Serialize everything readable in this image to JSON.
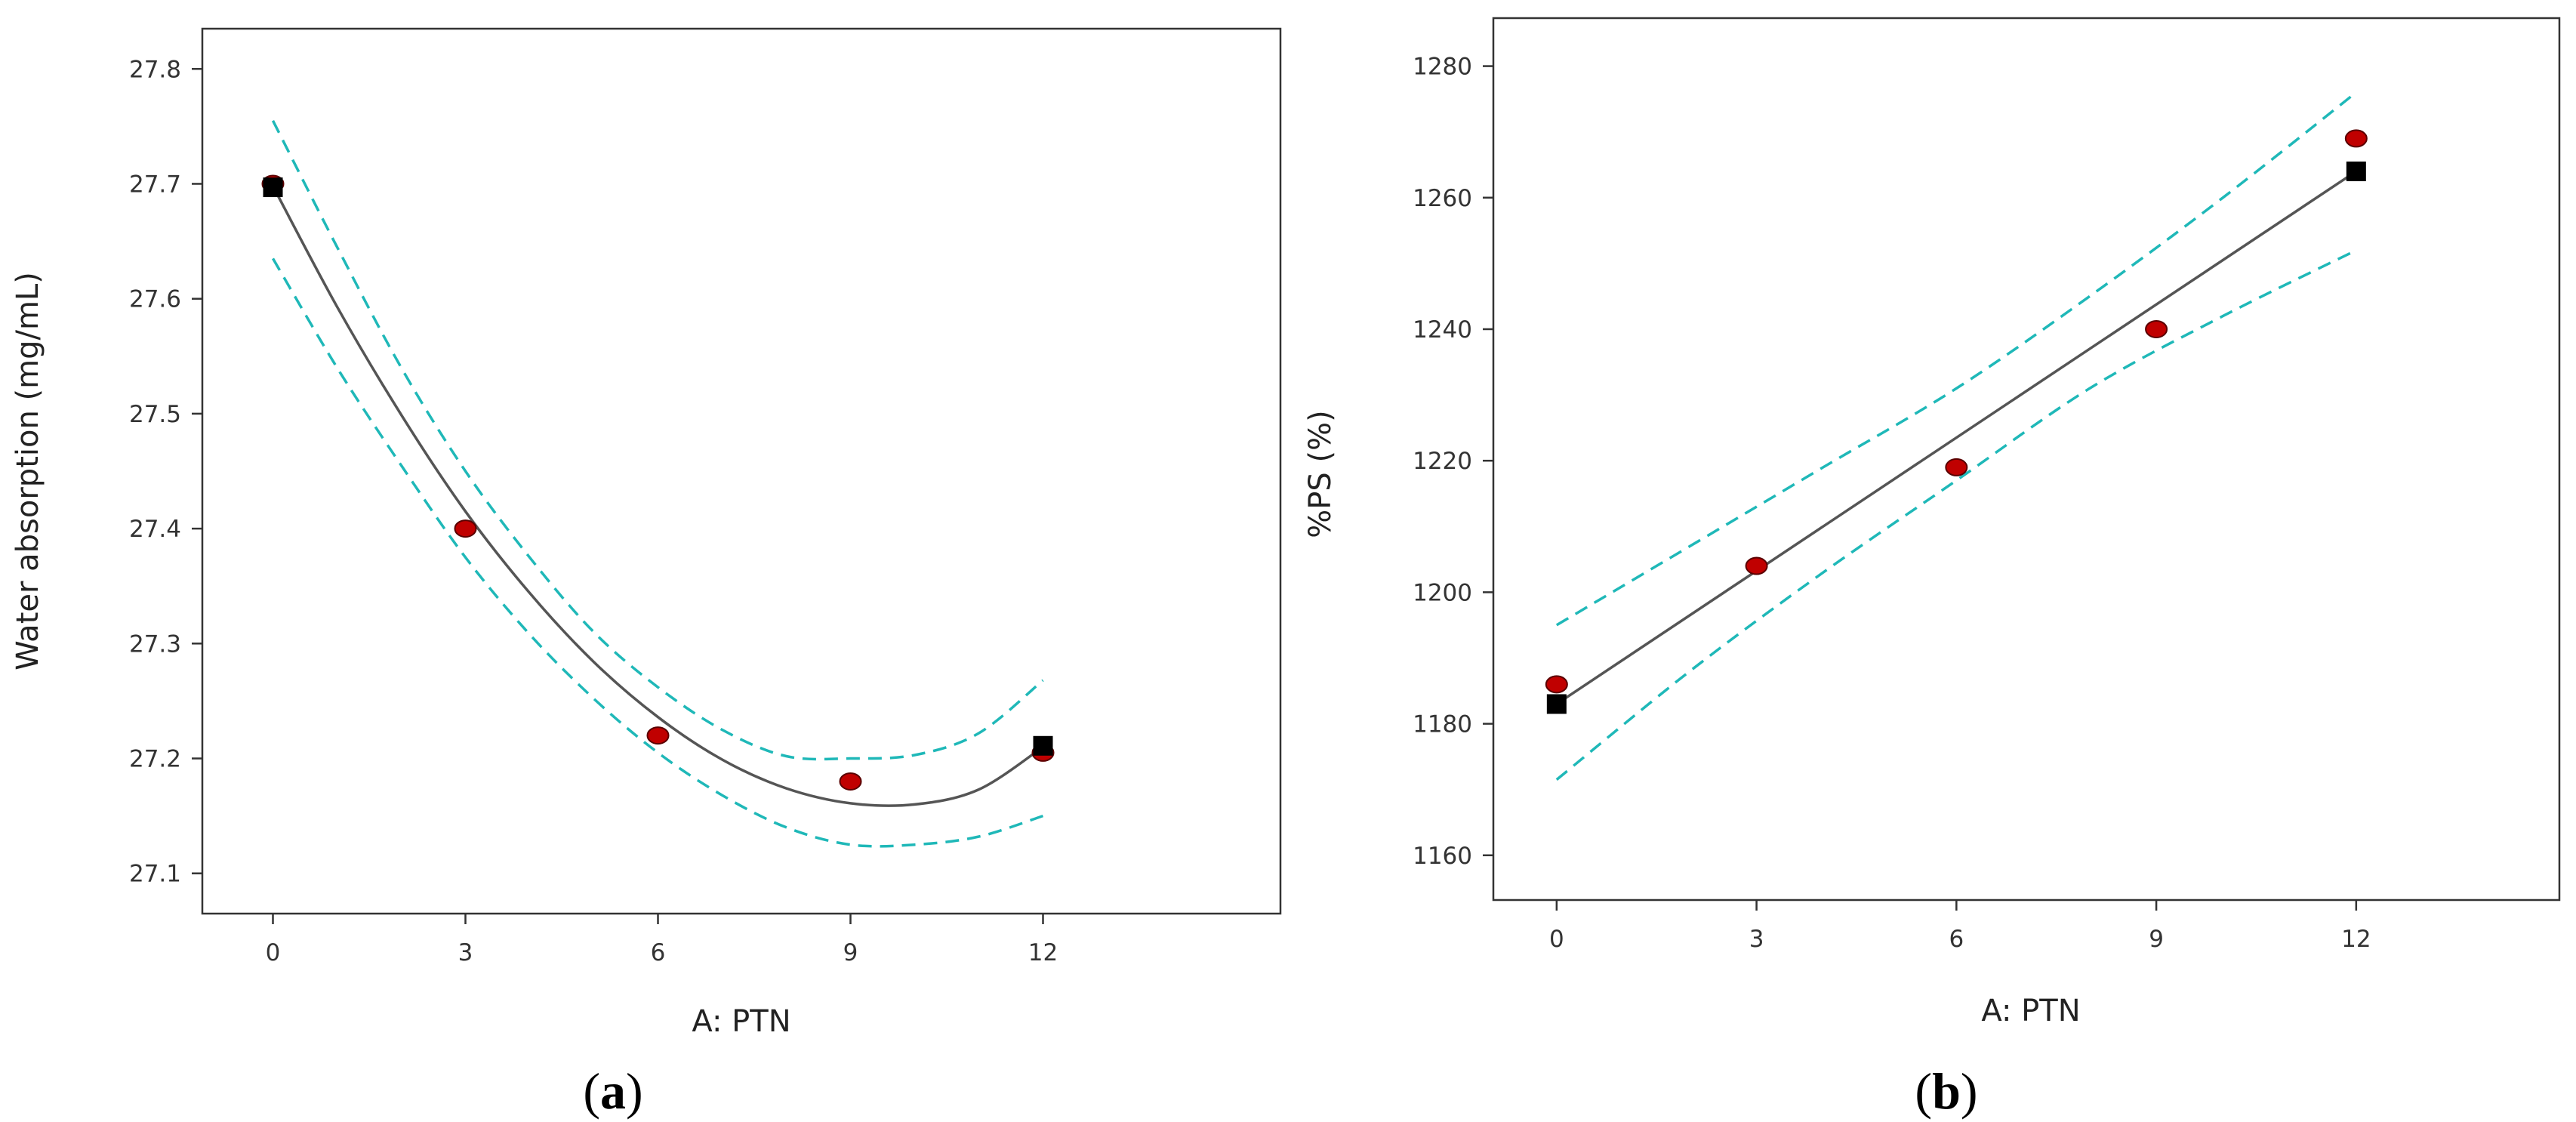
{
  "colors": {
    "fit_line": "#555555",
    "confidence_band": "#1fb8b8",
    "actual_point_fill": "#c00000",
    "actual_point_stroke": "#5a0000",
    "predicted_marker": "#000000",
    "frame": "#333333"
  },
  "chart_data": [
    {
      "type": "line",
      "panel_label": {
        "open": "(",
        "letter": "a",
        "close": ")"
      },
      "xlabel": "A: PTN",
      "ylabel": "Water absorption (mg/mL)",
      "xlim": [
        -1.1,
        15.7
      ],
      "ylim": [
        27.065,
        27.835
      ],
      "x_ticks": [
        0,
        3,
        6,
        9,
        12
      ],
      "y_ticks": [
        27.1,
        27.2,
        27.3,
        27.4,
        27.5,
        27.6,
        27.7,
        27.8
      ],
      "tick_decimals": 1,
      "grid": false,
      "fit": {
        "x": [
          0,
          1,
          2,
          3,
          4,
          5,
          6,
          7,
          8,
          9,
          10,
          11,
          12
        ],
        "y": [
          27.698,
          27.593,
          27.499,
          27.415,
          27.344,
          27.284,
          27.236,
          27.199,
          27.174,
          27.161,
          27.16,
          27.173,
          27.21
        ]
      },
      "upper_band": {
        "x": [
          0,
          1,
          2,
          3,
          4,
          5,
          6,
          7,
          8,
          9,
          10,
          11,
          12
        ],
        "y": [
          27.755,
          27.645,
          27.54,
          27.45,
          27.375,
          27.31,
          27.262,
          27.225,
          27.202,
          27.2,
          27.203,
          27.222,
          27.268
        ]
      },
      "lower_band": {
        "x": [
          0,
          1,
          2,
          3,
          4,
          5,
          6,
          7,
          8,
          9,
          10,
          11,
          12
        ],
        "y": [
          27.635,
          27.54,
          27.455,
          27.375,
          27.308,
          27.252,
          27.205,
          27.168,
          27.14,
          27.125,
          27.125,
          27.132,
          27.15
        ]
      },
      "actual_points": {
        "x": [
          0,
          3,
          6,
          9,
          12
        ],
        "y": [
          27.7,
          27.4,
          27.22,
          27.18,
          27.205
        ]
      },
      "predicted_markers": {
        "x": [
          0,
          12
        ],
        "y": [
          27.697,
          27.211
        ]
      }
    },
    {
      "type": "line",
      "panel_label": {
        "open": "(",
        "letter": "b",
        "close": ")"
      },
      "xlabel": "A: PTN",
      "ylabel": "%PS (%)",
      "xlim": [
        -0.95,
        15.05
      ],
      "ylim": [
        1153.2,
        1287.3
      ],
      "x_ticks": [
        0,
        3,
        6,
        9,
        12
      ],
      "y_ticks": [
        1160,
        1180,
        1200,
        1220,
        1240,
        1260,
        1280
      ],
      "tick_decimals": 0,
      "grid": false,
      "fit": {
        "x": [
          0,
          12
        ],
        "y": [
          1183,
          1264
        ]
      },
      "upper_band": {
        "x": [
          0,
          2,
          4,
          6,
          8,
          10,
          12
        ],
        "y": [
          1195,
          1207,
          1219,
          1231,
          1245,
          1260,
          1276
        ]
      },
      "lower_band": {
        "x": [
          0,
          2,
          4,
          6,
          8,
          10,
          12
        ],
        "y": [
          1171.5,
          1188,
          1203,
          1217,
          1231,
          1242,
          1252
        ]
      },
      "actual_points": {
        "x": [
          0,
          3,
          6,
          9,
          12
        ],
        "y": [
          1186,
          1204,
          1219,
          1240,
          1269
        ]
      },
      "predicted_markers": {
        "x": [
          0,
          12
        ],
        "y": [
          1183,
          1264
        ]
      }
    }
  ]
}
